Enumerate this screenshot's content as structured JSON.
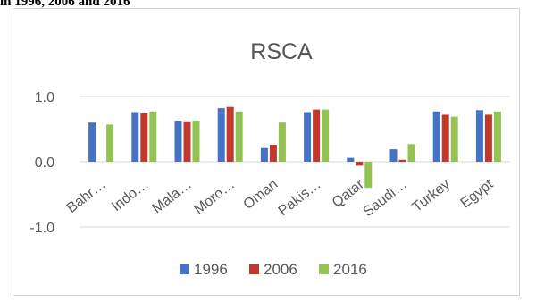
{
  "caption": "in 1996, 2006 and 2016",
  "chart_data": {
    "type": "bar",
    "title": "RSCA",
    "categories": [
      "Bahr…",
      "Indo…",
      "Mala…",
      "Moro…",
      "Oman",
      "Pakis…",
      "Qatar",
      "Saudi…",
      "Turkey",
      "Egypt"
    ],
    "series": [
      {
        "name": "1996",
        "color": "#4472c4",
        "values": [
          0.6,
          0.76,
          0.63,
          0.82,
          0.21,
          0.76,
          0.06,
          0.19,
          0.77,
          0.79
        ]
      },
      {
        "name": "2006",
        "color": "#c0392b",
        "values": [
          null,
          0.74,
          0.62,
          0.84,
          0.26,
          0.8,
          -0.06,
          0.03,
          0.72,
          0.72
        ]
      },
      {
        "name": "2016",
        "color": "#92c353",
        "values": [
          0.57,
          0.77,
          0.63,
          0.77,
          0.6,
          0.8,
          -0.4,
          0.27,
          0.69,
          0.77
        ]
      }
    ],
    "y_ticks": [
      "1.0",
      "0.0",
      "-1.0"
    ],
    "ylim": [
      -1.0,
      1.0
    ],
    "legend_position": "bottom",
    "grid": true
  }
}
